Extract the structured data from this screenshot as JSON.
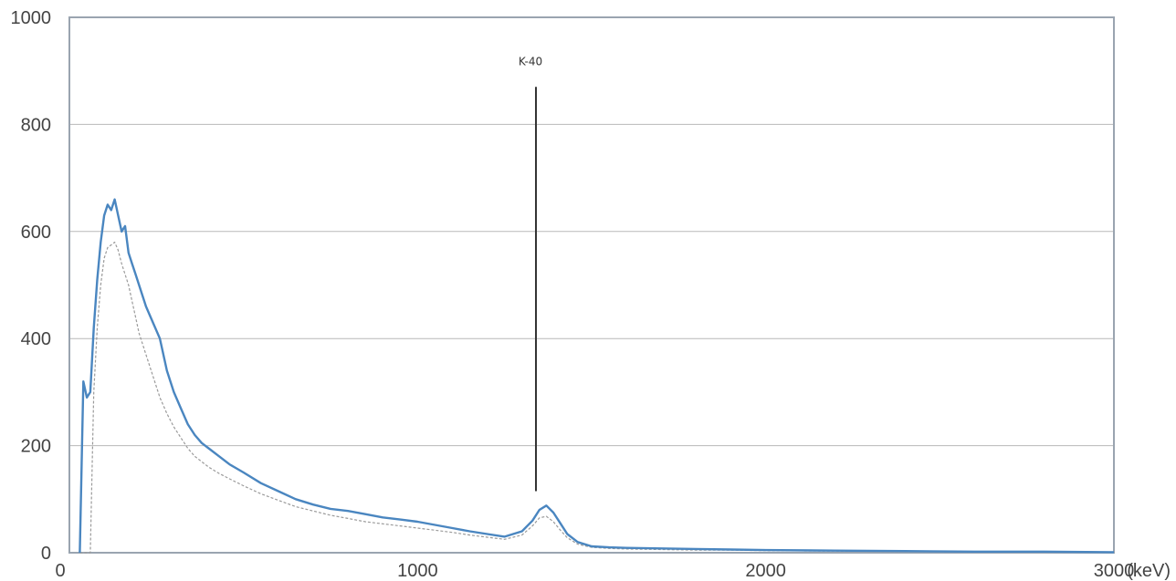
{
  "chart_data": {
    "type": "line",
    "title": "",
    "xlabel": "",
    "ylabel": "",
    "x_unit": "(keV)",
    "xlim": [
      0,
      3000
    ],
    "ylim": [
      0,
      1000
    ],
    "x_ticks": [
      0,
      1000,
      2000,
      3000
    ],
    "y_ticks": [
      0,
      200,
      400,
      600,
      800,
      1000
    ],
    "grid": "horizontal",
    "legend": "none",
    "series": [
      {
        "color": "#4a86c0",
        "style": "solid",
        "x": [
          30,
          40,
          50,
          60,
          70,
          80,
          90,
          100,
          110,
          120,
          130,
          140,
          150,
          160,
          170,
          180,
          190,
          200,
          220,
          240,
          260,
          280,
          300,
          320,
          340,
          360,
          380,
          400,
          430,
          460,
          500,
          550,
          600,
          650,
          700,
          750,
          800,
          850,
          900,
          950,
          1000,
          1050,
          1100,
          1150,
          1200,
          1250,
          1300,
          1330,
          1350,
          1370,
          1390,
          1410,
          1430,
          1460,
          1500,
          1550,
          1600,
          1700,
          1800,
          1900,
          2000,
          2200,
          2400,
          2600,
          2800,
          3000
        ],
        "y": [
          0,
          320,
          290,
          300,
          420,
          510,
          580,
          630,
          650,
          640,
          660,
          630,
          600,
          610,
          560,
          540,
          520,
          500,
          460,
          430,
          400,
          340,
          300,
          270,
          240,
          220,
          205,
          195,
          180,
          165,
          150,
          130,
          115,
          100,
          90,
          82,
          78,
          72,
          66,
          62,
          58,
          52,
          46,
          40,
          35,
          30,
          40,
          60,
          80,
          88,
          75,
          55,
          35,
          20,
          12,
          10,
          9,
          8,
          7,
          6,
          5,
          4,
          3,
          2,
          2,
          1
        ]
      },
      {
        "color": "#9a9a9a",
        "style": "dashed",
        "x": [
          30,
          40,
          50,
          60,
          70,
          80,
          90,
          100,
          110,
          120,
          130,
          140,
          150,
          160,
          170,
          180,
          190,
          200,
          220,
          240,
          260,
          280,
          300,
          320,
          340,
          360,
          380,
          400,
          430,
          460,
          500,
          550,
          600,
          650,
          700,
          750,
          800,
          850,
          900,
          950,
          1000,
          1050,
          1100,
          1150,
          1200,
          1250,
          1300,
          1330,
          1350,
          1370,
          1390,
          1410,
          1430,
          1460,
          1500,
          1550,
          1600,
          1700,
          1800,
          1900,
          2000,
          2200,
          2400,
          2600,
          2800,
          3000
        ],
        "y": [
          0,
          0,
          0,
          0,
          300,
          420,
          500,
          550,
          570,
          575,
          580,
          565,
          540,
          520,
          500,
          470,
          440,
          410,
          370,
          330,
          290,
          260,
          235,
          215,
          195,
          180,
          170,
          160,
          148,
          138,
          125,
          110,
          98,
          86,
          78,
          70,
          64,
          58,
          54,
          50,
          46,
          42,
          38,
          33,
          29,
          25,
          33,
          50,
          65,
          68,
          58,
          42,
          28,
          16,
          10,
          8,
          7,
          6,
          5,
          5,
          4,
          3,
          2,
          2,
          1,
          1
        ]
      }
    ],
    "annotations": [
      {
        "label": "K-40",
        "x": 1340,
        "y_from": 115,
        "y_to": 870
      }
    ]
  }
}
